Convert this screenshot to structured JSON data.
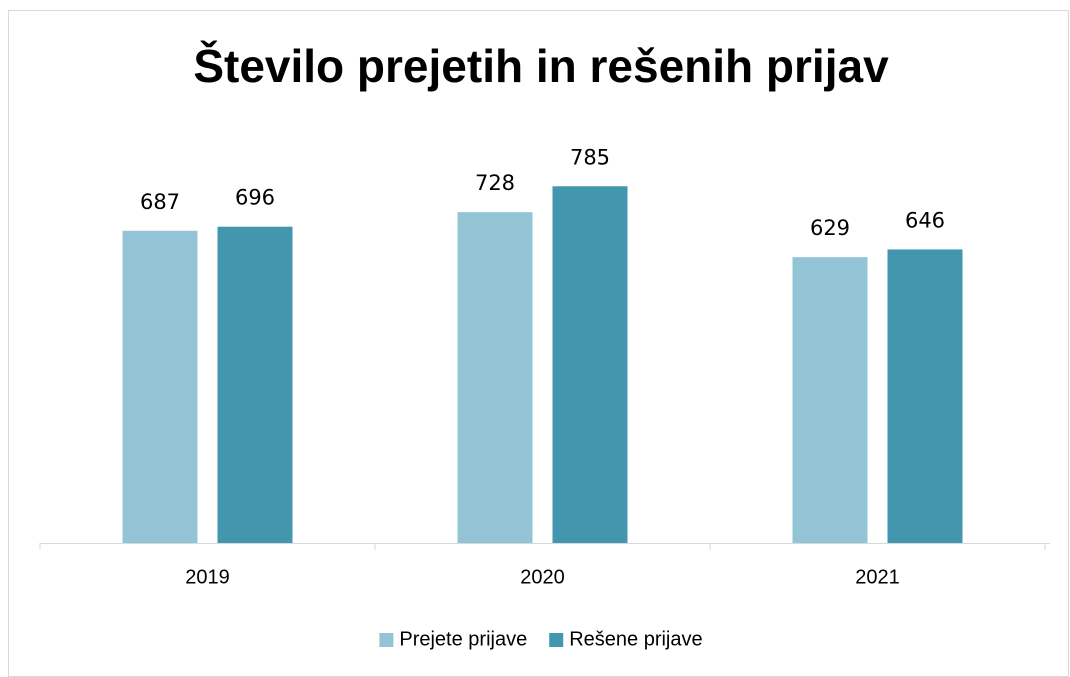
{
  "chart_data": {
    "type": "bar",
    "title": "Število prejetih in rešenih prijav",
    "categories": [
      "2019",
      "2020",
      "2021"
    ],
    "series": [
      {
        "name": "Prejete prijave",
        "color": "#92c4d5",
        "values": [
          687,
          728,
          629
        ]
      },
      {
        "name": "Rešene prijave",
        "color": "#4297ae",
        "values": [
          696,
          785,
          646
        ]
      }
    ],
    "ylim": [
      0,
      900
    ],
    "legend": "bottom"
  }
}
